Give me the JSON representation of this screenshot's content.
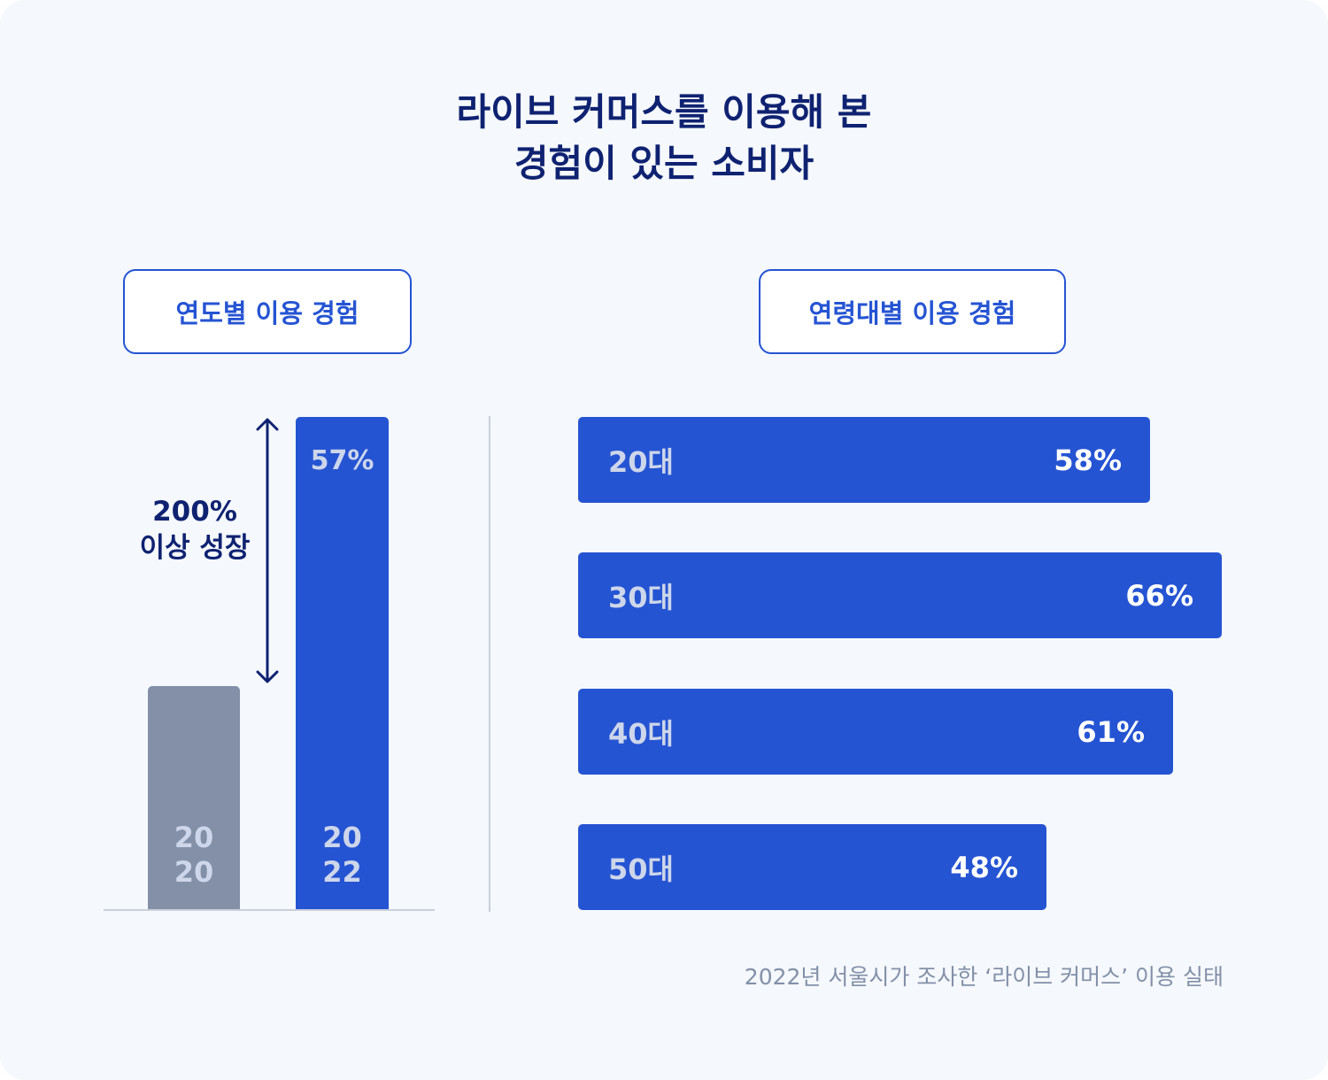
{
  "title": {
    "line1": "라이브 커머스를 이용해 본",
    "line2": "경험이 있는 소비자"
  },
  "colors": {
    "navy": "#0f2271",
    "accent_blue": "#2554d3",
    "gray_bar": "#8390a8",
    "background": "#f5f8fc"
  },
  "yearly": {
    "section_label": "연도별 이용 경험",
    "bar_2020": {
      "year_top": "20",
      "year_bottom": "20"
    },
    "bar_2022": {
      "year_top": "20",
      "year_bottom": "22",
      "value_label": "57%"
    },
    "growth_line1": "200%",
    "growth_line2": "이상 성장",
    "arrow_icon": "double-headed-vertical-arrow"
  },
  "age": {
    "section_label": "연령대별 이용 경험",
    "bars": [
      {
        "category": "20대",
        "value_label": "58%"
      },
      {
        "category": "30대",
        "value_label": "66%"
      },
      {
        "category": "40대",
        "value_label": "61%"
      },
      {
        "category": "50대",
        "value_label": "48%"
      }
    ]
  },
  "source": "2022년 서울시가 조사한 ‘라이브 커머스’ 이용 실태",
  "chart_data": [
    {
      "type": "bar",
      "orientation": "vertical",
      "title": "연도별 이용 경험",
      "categories": [
        "2020",
        "2022"
      ],
      "values": [
        null,
        57
      ],
      "value_labels": [
        "",
        "57%"
      ],
      "annotation": "200% 이상 성장",
      "unit": "%"
    },
    {
      "type": "bar",
      "orientation": "horizontal",
      "title": "연령대별 이용 경험",
      "categories": [
        "20대",
        "30대",
        "40대",
        "50대"
      ],
      "values": [
        58,
        66,
        61,
        48
      ],
      "unit": "%"
    }
  ]
}
